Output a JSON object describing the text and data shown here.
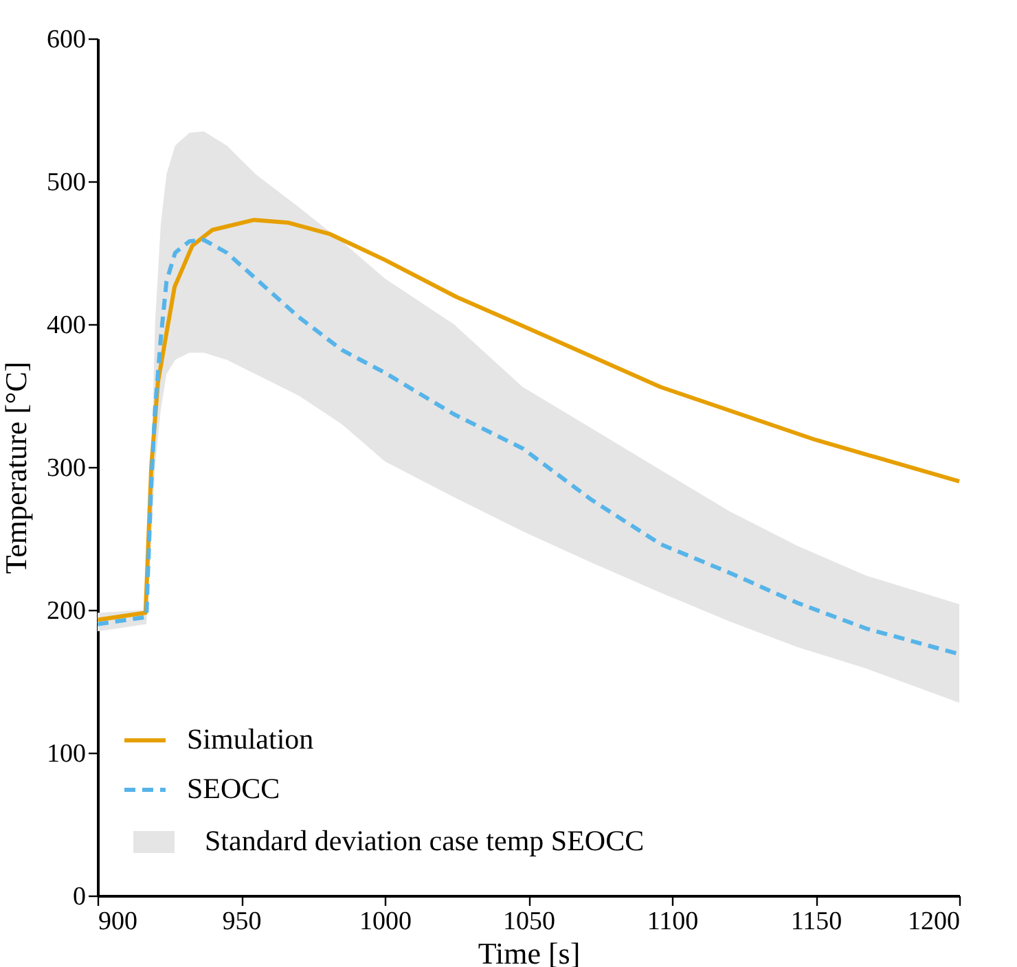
{
  "chart_data": {
    "type": "line",
    "xlabel": "Time [s]",
    "ylabel": "Temperature [°C]",
    "xlim": [
      900,
      1200
    ],
    "xticks": [
      900,
      950,
      1000,
      1050,
      1100,
      1150,
      1200
    ],
    "ylim": [
      0,
      600
    ],
    "yticks": [
      0,
      100,
      200,
      300,
      400,
      500,
      600
    ],
    "grid": false,
    "legend": "bottom left",
    "marker": "none",
    "annotations": [
      "Standard deviation case temp SEOCC"
    ],
    "series": [
      {
        "name": "Simulation",
        "color": "#e69f00",
        "line_style": "solid",
        "x": [
          900,
          916.7,
          918.7,
          921,
          923.4,
          926.8,
          933,
          940,
          954.5,
          966.5,
          981,
          1000,
          1025,
          1050,
          1096,
          1150,
          1200
        ],
        "values": [
          193,
          198,
          300,
          359,
          387,
          426,
          455,
          466,
          473,
          471,
          463,
          445,
          419,
          397,
          356,
          319,
          290
        ]
      },
      {
        "name": "SEOCC",
        "color": "#56b4e9",
        "line_style": "dashed",
        "x": [
          900,
          917,
          918.5,
          920,
          922,
          924,
          927,
          932,
          937,
          945,
          955,
          970,
          985,
          1000,
          1024,
          1048,
          1072,
          1096,
          1120,
          1143.5,
          1167.5,
          1200
        ],
        "values": [
          190,
          195,
          280,
          340,
          390,
          430,
          450,
          458,
          459,
          450,
          432,
          405,
          382,
          366,
          337,
          313,
          277,
          246,
          226,
          205,
          187,
          169
        ],
        "lower": [
          185,
          190,
          240,
          300,
          340,
          365,
          375,
          380,
          380,
          375,
          365,
          350,
          330,
          304,
          279,
          255,
          233,
          212,
          192,
          174,
          159,
          135
        ],
        "upper": [
          198,
          200,
          280,
          400,
          470,
          505,
          525,
          534,
          535,
          525,
          505,
          482,
          458,
          432,
          400,
          356,
          327,
          298,
          269,
          245,
          224,
          204
        ]
      }
    ]
  }
}
